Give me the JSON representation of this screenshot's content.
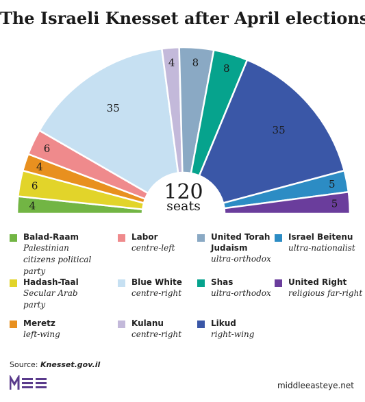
{
  "title": "The Israeli Knesset after April elections",
  "center": {
    "number": "120",
    "label": "seats"
  },
  "chart_data": {
    "type": "pie",
    "variant": "parliament-half-donut",
    "total": 120,
    "title": "The Israeli Knesset after April elections",
    "segments": [
      {
        "name": "Balad-Raam",
        "description": "Palestinian citizens political party",
        "value": 4,
        "label": "4",
        "color": "#72b544"
      },
      {
        "name": "Hadash-Taal",
        "description": "Secular Arab party",
        "value": 6,
        "label": "6",
        "color": "#e2d42a"
      },
      {
        "name": "Meretz",
        "description": "left-wing",
        "value": 4,
        "label": "4",
        "color": "#e8901f"
      },
      {
        "name": "Labor",
        "description": "centre-left",
        "value": 6,
        "label": "6",
        "color": "#ef8a8c"
      },
      {
        "name": "Blue White",
        "description": "centre-right",
        "value": 35,
        "label": "35",
        "color": "#c6e0f2"
      },
      {
        "name": "Kulanu",
        "description": "centre-right",
        "value": 4,
        "label": "4",
        "color": "#c3b9da"
      },
      {
        "name": "United Torah Judaism",
        "description": "ultra-orthodox",
        "value": 8,
        "label": "8",
        "color": "#8aa9c4"
      },
      {
        "name": "Shas",
        "description": "ultra-orthodox",
        "value": 8,
        "label": "8",
        "color": "#06a38d"
      },
      {
        "name": "Likud",
        "description": "right-wing",
        "value": 35,
        "label": "35",
        "color": "#3a57a7"
      },
      {
        "name": "Israel Beitenu",
        "description": "ultra-nationalist",
        "value": 5,
        "label": "5",
        "color": "#2c8cc4"
      },
      {
        "name": "United Right",
        "description": "religious far-right",
        "value": 5,
        "label": "5",
        "color": "#6a3d9c"
      }
    ]
  },
  "legend": [
    {
      "name": "Balad-Raam",
      "desc": "Palestinian citizens political party",
      "color": "#72b544"
    },
    {
      "name": "Labor",
      "desc": "centre-left",
      "color": "#ef8a8c"
    },
    {
      "name": "United Torah Judaism",
      "desc": "ultra-orthodox",
      "color": "#8aa9c4"
    },
    {
      "name": "Israel Beitenu",
      "desc": "ultra-nationalist",
      "color": "#2c8cc4"
    },
    {
      "name": "Hadash-Taal",
      "desc": "Secular Arab party",
      "color": "#e2d42a"
    },
    {
      "name": "Blue White",
      "desc": "centre-right",
      "color": "#c6e0f2"
    },
    {
      "name": "Shas",
      "desc": "ultra-orthodox",
      "color": "#06a38d"
    },
    {
      "name": "United Right",
      "desc": "religious far-right",
      "color": "#6a3d9c"
    },
    {
      "name": "Meretz",
      "desc": "left-wing",
      "color": "#e8901f"
    },
    {
      "name": "Kulanu",
      "desc": "centre-right",
      "color": "#c3b9da"
    },
    {
      "name": "Likud",
      "desc": "right-wing",
      "color": "#3a57a7"
    }
  ],
  "source": {
    "label": "Source:",
    "value": "Knesset.gov.il"
  },
  "branding": {
    "logo_icon": "mee-logo-icon",
    "logo_color": "#5a3b8c",
    "site": "middleeasteye.net"
  }
}
